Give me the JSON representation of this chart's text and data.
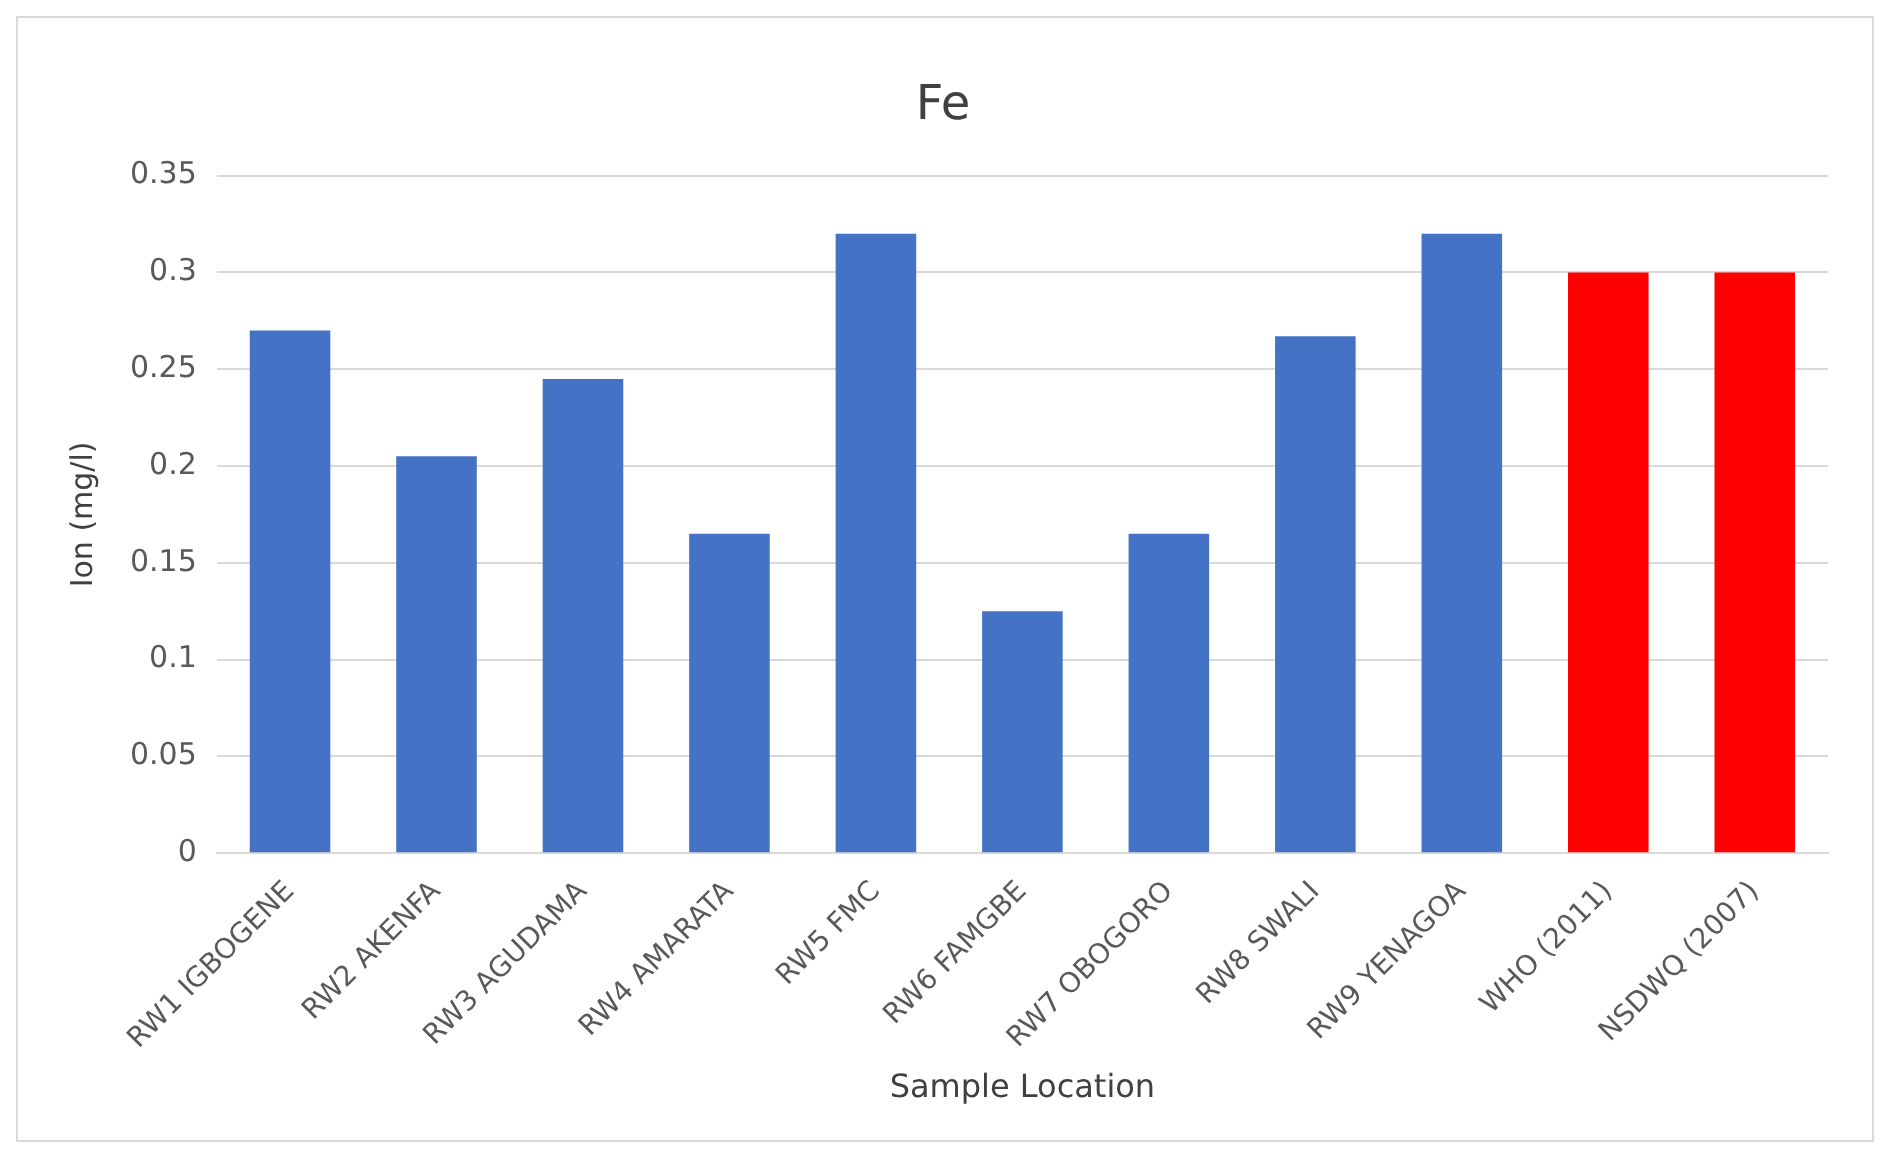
{
  "chart_data": {
    "type": "bar",
    "title": "Fe",
    "xlabel": "Sample Location",
    "ylabel": "Ion (mg/l)",
    "categories": [
      "RW1 IGBOGENE",
      "RW2 AKENFA",
      "RW3 AGUDAMA",
      "RW4 AMARATA",
      "RW5 FMC",
      "RW6 FAMGBE",
      "RW7 OBOGORO",
      "RW8 SWALI",
      "RW9 YENAGOA",
      "WHO (2011)",
      "NSDWQ (2007)"
    ],
    "values": [
      0.27,
      0.205,
      0.245,
      0.165,
      0.32,
      0.125,
      0.165,
      0.267,
      0.32,
      0.3,
      0.3
    ],
    "colors": [
      "#4472c4",
      "#4472c4",
      "#4472c4",
      "#4472c4",
      "#4472c4",
      "#4472c4",
      "#4472c4",
      "#4472c4",
      "#4472c4",
      "#ff0000",
      "#ff0000"
    ],
    "ylim": [
      0,
      0.35
    ],
    "yticks": [
      0,
      0.05,
      0.1,
      0.15,
      0.2,
      0.25,
      0.3,
      0.35
    ],
    "grid": "y",
    "legend": false
  }
}
